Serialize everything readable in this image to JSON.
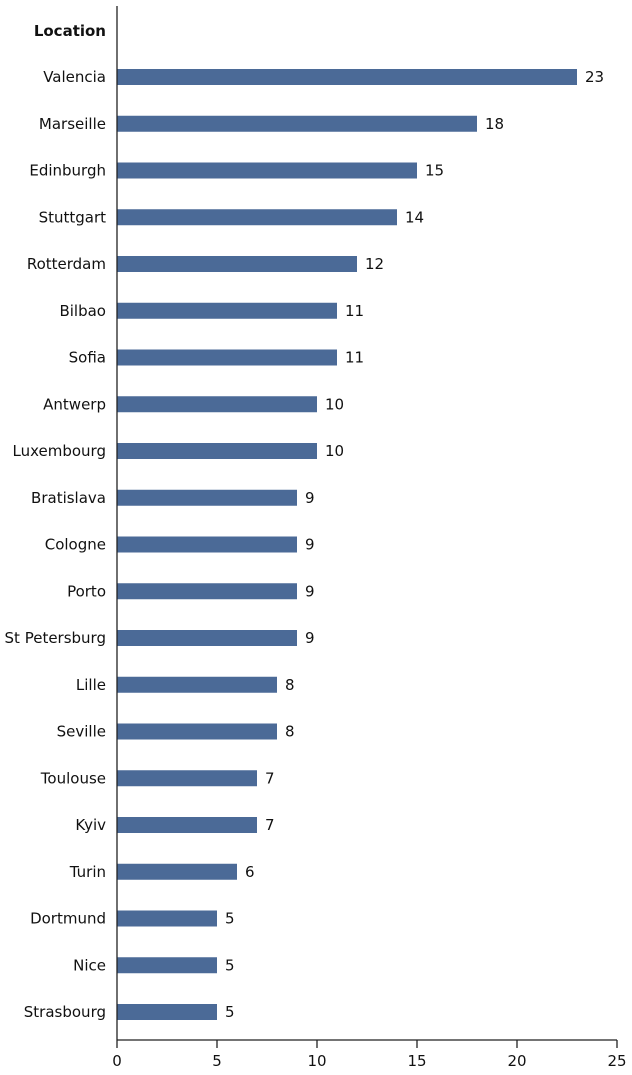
{
  "chart_data": {
    "type": "bar",
    "orientation": "horizontal",
    "category_header": "Location",
    "categories": [
      "Valencia",
      "Marseille",
      "Edinburgh",
      "Stuttgart",
      "Rotterdam",
      "Bilbao",
      "Sofia",
      "Antwerp",
      "Luxembourg",
      "Bratislava",
      "Cologne",
      "Porto",
      "St Petersburg",
      "Lille",
      "Seville",
      "Toulouse",
      "Kyiv",
      "Turin",
      "Dortmund",
      "Nice",
      "Strasbourg"
    ],
    "values": [
      23,
      18,
      15,
      14,
      12,
      11,
      11,
      10,
      10,
      9,
      9,
      9,
      9,
      8,
      8,
      7,
      7,
      6,
      5,
      5,
      5
    ],
    "xlim": [
      0,
      25
    ],
    "xticks": [
      0,
      5,
      10,
      15,
      20,
      25
    ],
    "grid": false,
    "legend": "none",
    "bar_color": "#4b6a97"
  }
}
